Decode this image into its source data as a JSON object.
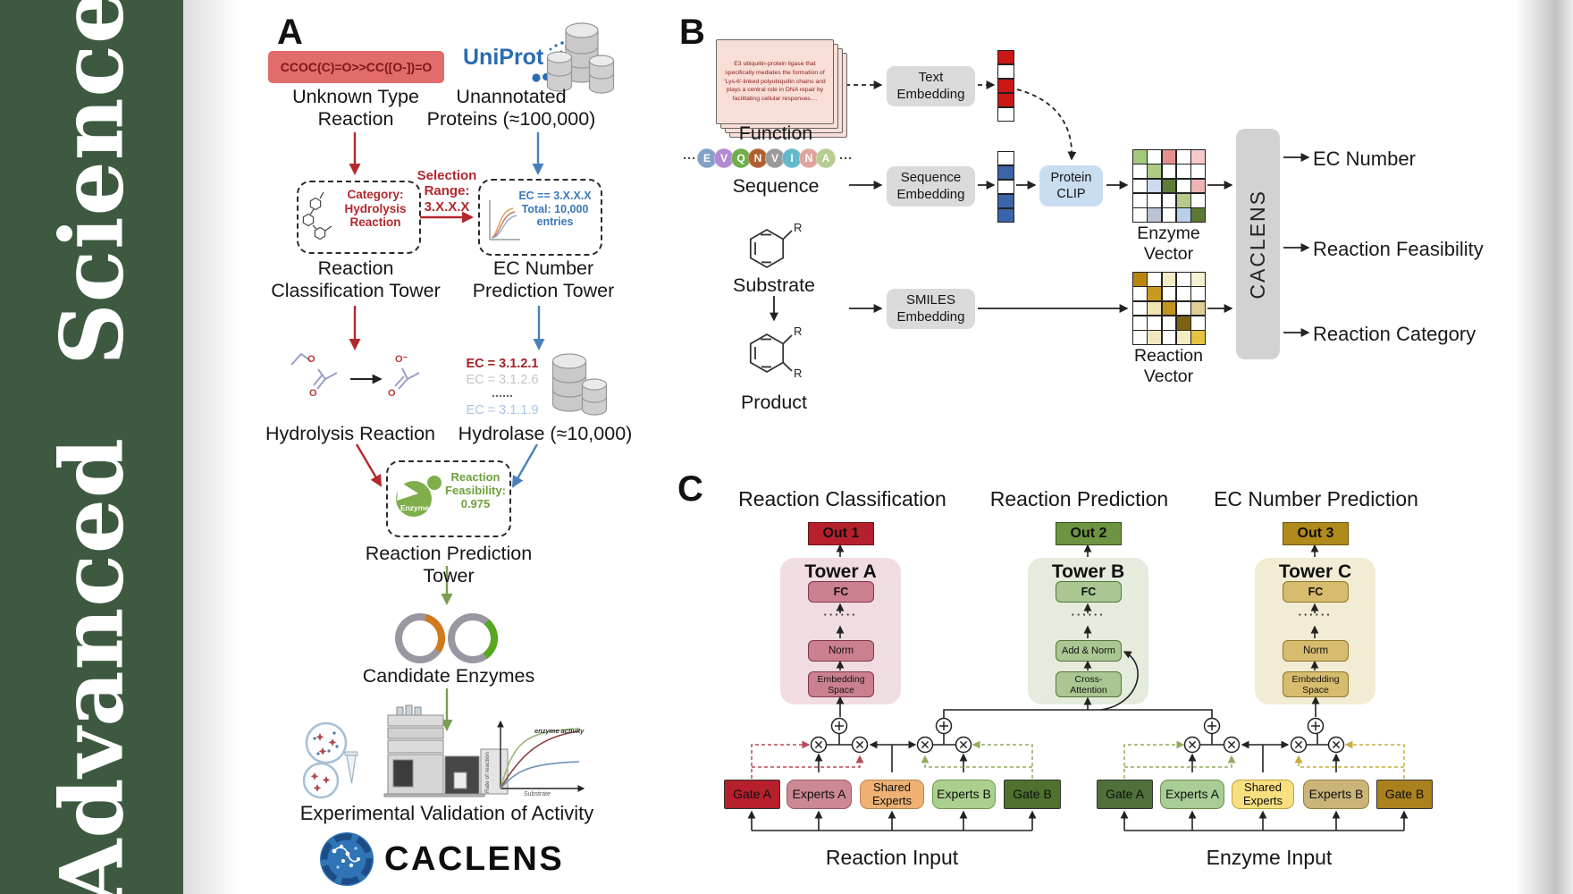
{
  "palette": {
    "sidebar_green": "#3d5a41",
    "smiles_red_bg": "#e26b6b",
    "arrow_red": "#b3282d",
    "arrow_blue": "#4a80b8",
    "arrow_green": "#7a9e50",
    "uniprot_blue": "#2a6cb3",
    "clip_blue": "#c9ddf1",
    "out1_red": "#b5202c",
    "out2_green": "#6d9440",
    "out3_gold": "#b08a1a"
  },
  "sidebar": {
    "journal": "Advanced  Science"
  },
  "panelA": {
    "label": "A",
    "smiles": "CCOC(C)=O>>CC([O-])=O",
    "unknown_reaction": "Unknown Type\nReaction",
    "uniprot": "UniProt",
    "unannotated": "Unannotated\nProteins (≈100,000)",
    "selection": "Selection\nRange:\n3.X.X.X",
    "category": "Category:\nHydrolysis\nReaction",
    "ec_filter": "EC == 3.X.X.X\nTotal: 10,000\nentries",
    "tower1": "Reaction\nClassification Tower",
    "tower2": "EC Number\nPrediction Tower",
    "hydrolysis": "Hydrolysis Reaction",
    "ec_list": [
      "EC = 3.1.2.1",
      "EC = 3.1.2.6",
      "......",
      "EC = 3.1.1.9"
    ],
    "hydrolase": "Hydrolase (≈10,000)",
    "enzyme_word": "Enzyme",
    "feasibility": "Reaction\nFeasibility:\n0.975",
    "tower3": "Reaction Prediction Tower",
    "candidates": "Candidate Enzymes",
    "validation": "Experimental Validation of Activity",
    "brand": "CACLENS",
    "atoms": {
      "o": "O",
      "o_minus": "O⁻"
    },
    "graph": {
      "ylabel": "Rate of reaction",
      "xlabel": "Substrate",
      "annotation": "enzyme activity"
    }
  },
  "panelB": {
    "label": "B",
    "function_text": "E3 ubiquitin-protein ligase that specifically mediates the formation of 'Lys-6'-linked polyubiquitin chains and plays a central role in DNA repair by facilitating cellular responses....",
    "function_label": "Function",
    "ellipsis": "···",
    "residues": [
      {
        "ch": "E",
        "color": "#84a0c6"
      },
      {
        "ch": "V",
        "color": "#b48ad2"
      },
      {
        "ch": "Q",
        "color": "#6fae4a"
      },
      {
        "ch": "N",
        "color": "#b06030"
      },
      {
        "ch": "V",
        "color": "#9a9a9a"
      },
      {
        "ch": "I",
        "color": "#64b8cc"
      },
      {
        "ch": "N",
        "color": "#e2a49e"
      },
      {
        "ch": "A",
        "color": "#b6cc92"
      }
    ],
    "sequence_label": "Sequence",
    "substrate_label": "Substrate",
    "product_label": "Product",
    "r_label": "R",
    "text_embedding": "Text\nEmbedding",
    "sequence_embedding": "Sequence\nEmbedding",
    "smiles_embedding": "SMILES\nEmbedding",
    "protein_clip": "Protein\nCLIP",
    "enzyme_vector_label": "Enzyme Vector",
    "reaction_vector_label": "Reaction Vector",
    "caclens_bar": "CACLENS",
    "outputs": [
      "EC Number",
      "Reaction Feasibility",
      "Reaction Category"
    ],
    "text_vector": [
      "#cc1717",
      "#ffffff",
      "#cc1717",
      "#cc1717",
      "#ffffff"
    ],
    "seq_vector": [
      "#ffffff",
      "#3c64a8",
      "#ffffff",
      "#3c64a8",
      "#3c64a8"
    ],
    "enzyme_vector": [
      [
        "#a4c87d",
        "#ffffff",
        "#e58e8e",
        "#ffffff",
        "#f6caca"
      ],
      [
        "#ffffff",
        "#aecb85",
        "#ffffff",
        "#ffffff",
        "#ffffff"
      ],
      [
        "#ffffff",
        "#ccdaee",
        "#5d7d36",
        "#ffffff",
        "#efb3b3"
      ],
      [
        "#ffffff",
        "#ffffff",
        "#ffffff",
        "#b3cc8b",
        "#ffffff"
      ],
      [
        "#ffffff",
        "#b9c3d2",
        "#ffffff",
        "#b8d0ea",
        "#5d7835"
      ]
    ],
    "reaction_vector": [
      [
        "#b8860f",
        "#ffffff",
        "#f4ebc6",
        "#ffffff",
        "#f8f0d2"
      ],
      [
        "#ffffff",
        "#c79a1f",
        "#ffffff",
        "#ffffff",
        "#ffffff"
      ],
      [
        "#ffffff",
        "#f0e3b2",
        "#c2941e",
        "#ffffff",
        "#e0cc94"
      ],
      [
        "#ffffff",
        "#ffffff",
        "#ffffff",
        "#7c6212",
        "#ffffff"
      ],
      [
        "#ffffff",
        "#f2e8c0",
        "#ffffff",
        "#f4ecc2",
        "#e2c342"
      ]
    ]
  },
  "panelC": {
    "label": "C",
    "columns": [
      {
        "title": "Reaction Classification",
        "out": "Out 1",
        "tower": "Tower A",
        "fc": "FC",
        "dots": "······",
        "mid": "Norm",
        "base": "Embedding\nSpace"
      },
      {
        "title": "Reaction Prediction",
        "out": "Out 2",
        "tower": "Tower B",
        "fc": "FC",
        "dots": "······",
        "mid": "Add & Norm",
        "base": "Cross-\nAttention"
      },
      {
        "title": "EC Number Prediction",
        "out": "Out 3",
        "tower": "Tower C",
        "fc": "FC",
        "dots": "······",
        "mid": "Norm",
        "base": "Embedding\nSpace"
      }
    ],
    "reaction_group": {
      "gate_a": "Gate A",
      "experts_a": "Experts A",
      "shared": "Shared\nExperts",
      "experts_b": "Experts B",
      "gate_b": "Gate B",
      "label": "Reaction Input"
    },
    "enzyme_group": {
      "gate_a": "Gate A",
      "experts_a": "Experts A",
      "shared": "Shared\nExperts",
      "experts_b": "Experts B",
      "gate_b": "Gate B",
      "label": "Enzyme Input"
    }
  }
}
